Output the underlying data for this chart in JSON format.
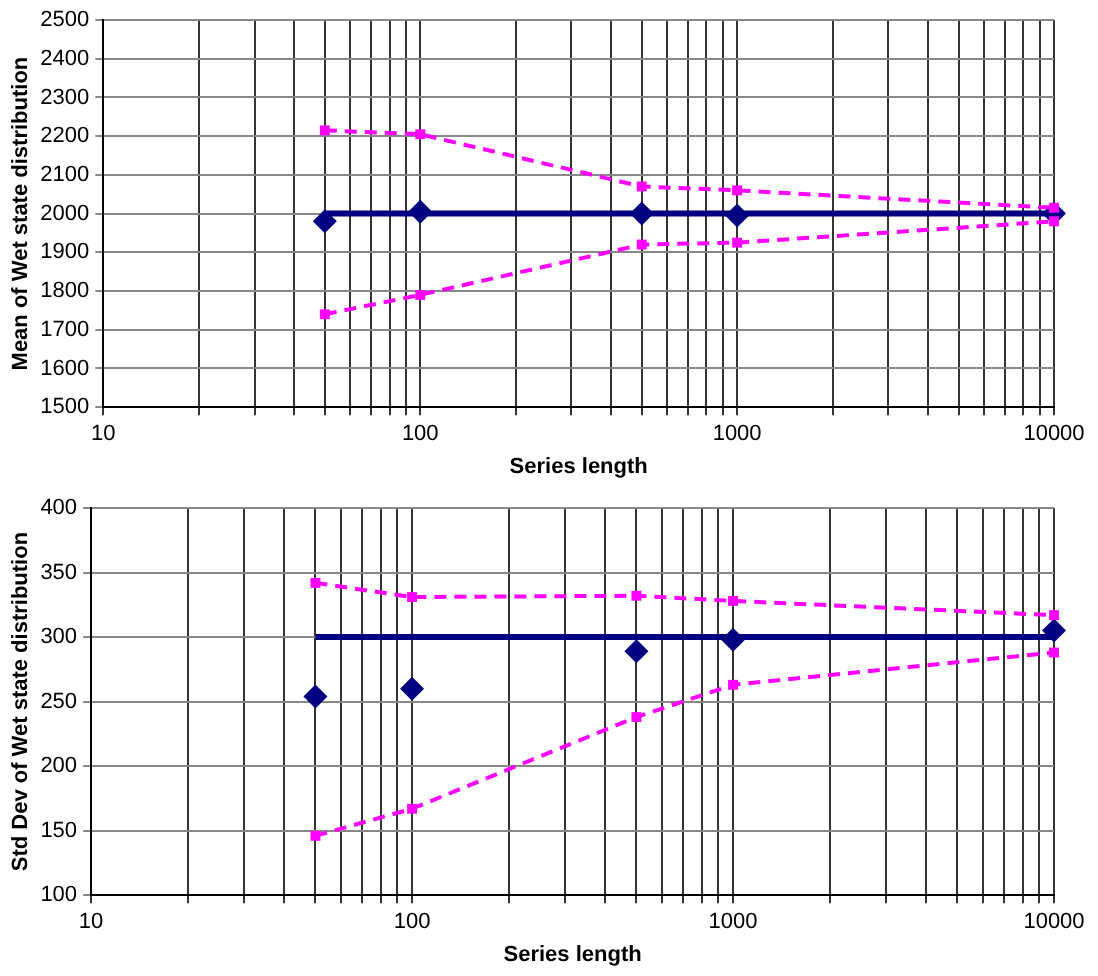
{
  "chart_data": [
    {
      "type": "line",
      "log": "x",
      "grid": true,
      "xlabel": "Series length",
      "ylabel": "Mean of Wet state distribution",
      "x": [
        50,
        100,
        500,
        1000,
        10000
      ],
      "xlim": [
        10,
        10000
      ],
      "xticks": [
        10,
        {
          "value": 20,
          "label": null
        },
        {
          "value": 30,
          "label": null
        },
        {
          "value": 40,
          "label": null
        },
        {
          "value": 50,
          "label": null
        },
        {
          "value": 60,
          "label": null
        },
        {
          "value": 70,
          "label": null
        },
        {
          "value": 80,
          "label": null
        },
        {
          "value": 90,
          "label": null
        },
        100,
        {
          "value": 200,
          "label": null
        },
        {
          "value": 300,
          "label": null
        },
        {
          "value": 400,
          "label": null
        },
        {
          "value": 500,
          "label": null
        },
        {
          "value": 600,
          "label": null
        },
        {
          "value": 700,
          "label": null
        },
        {
          "value": 800,
          "label": null
        },
        {
          "value": 900,
          "label": null
        },
        1000,
        {
          "value": 2000,
          "label": null
        },
        {
          "value": 3000,
          "label": null
        },
        {
          "value": 4000,
          "label": null
        },
        {
          "value": 5000,
          "label": null
        },
        {
          "value": 6000,
          "label": null
        },
        {
          "value": 7000,
          "label": null
        },
        {
          "value": 8000,
          "label": null
        },
        {
          "value": 9000,
          "label": null
        },
        10000
      ],
      "ylim": [
        1500,
        2500
      ],
      "yticks": [
        1500,
        1600,
        1700,
        1800,
        1900,
        2000,
        2100,
        2200,
        2300,
        2400,
        2500
      ],
      "series": [
        {
          "type": "line",
          "color": "#ff00ff",
          "marker": "square",
          "line_style": "dashed",
          "values": [
            2215,
            2205,
            2070,
            2060,
            2015
          ]
        },
        {
          "type": "line",
          "color": "#ff00ff",
          "marker": "square",
          "line_style": "dashed",
          "values": [
            1740,
            1790,
            1920,
            1925,
            1980
          ]
        },
        {
          "type": "line",
          "color": "#000080",
          "marker": "none",
          "line_style": "solid",
          "values": [
            2000,
            2000,
            2000,
            2000,
            2000
          ]
        },
        {
          "type": "scatter",
          "color": "#000080",
          "marker": "diamond",
          "values": [
            1980,
            2005,
            2000,
            1995,
            2000
          ]
        }
      ]
    },
    {
      "type": "line",
      "log": "x",
      "grid": true,
      "xlabel": "Series length",
      "ylabel": "Std Dev of Wet state distribution",
      "x": [
        50,
        100,
        500,
        1000,
        10000
      ],
      "xlim": [
        10,
        10000
      ],
      "xticks": [
        10,
        {
          "value": 20,
          "label": null
        },
        {
          "value": 30,
          "label": null
        },
        {
          "value": 40,
          "label": null
        },
        {
          "value": 50,
          "label": null
        },
        {
          "value": 60,
          "label": null
        },
        {
          "value": 70,
          "label": null
        },
        {
          "value": 80,
          "label": null
        },
        {
          "value": 90,
          "label": null
        },
        100,
        {
          "value": 200,
          "label": null
        },
        {
          "value": 300,
          "label": null
        },
        {
          "value": 400,
          "label": null
        },
        {
          "value": 500,
          "label": null
        },
        {
          "value": 600,
          "label": null
        },
        {
          "value": 700,
          "label": null
        },
        {
          "value": 800,
          "label": null
        },
        {
          "value": 900,
          "label": null
        },
        1000,
        {
          "value": 2000,
          "label": null
        },
        {
          "value": 3000,
          "label": null
        },
        {
          "value": 4000,
          "label": null
        },
        {
          "value": 5000,
          "label": null
        },
        {
          "value": 6000,
          "label": null
        },
        {
          "value": 7000,
          "label": null
        },
        {
          "value": 8000,
          "label": null
        },
        {
          "value": 9000,
          "label": null
        },
        10000
      ],
      "ylim": [
        100,
        400
      ],
      "yticks": [
        100,
        150,
        200,
        250,
        300,
        350,
        400
      ],
      "series": [
        {
          "type": "line",
          "color": "#ff00ff",
          "marker": "square",
          "line_style": "dashed",
          "values": [
            342,
            331,
            332,
            328,
            317
          ]
        },
        {
          "type": "line",
          "color": "#ff00ff",
          "marker": "square",
          "line_style": "dashed",
          "values": [
            146,
            167,
            238,
            263,
            288
          ]
        },
        {
          "type": "line",
          "color": "#000080",
          "marker": "none",
          "line_style": "solid",
          "values": [
            300,
            300,
            300,
            300,
            300
          ]
        },
        {
          "type": "scatter",
          "color": "#000080",
          "marker": "diamond",
          "values": [
            254,
            260,
            289,
            298,
            305
          ]
        }
      ]
    }
  ]
}
